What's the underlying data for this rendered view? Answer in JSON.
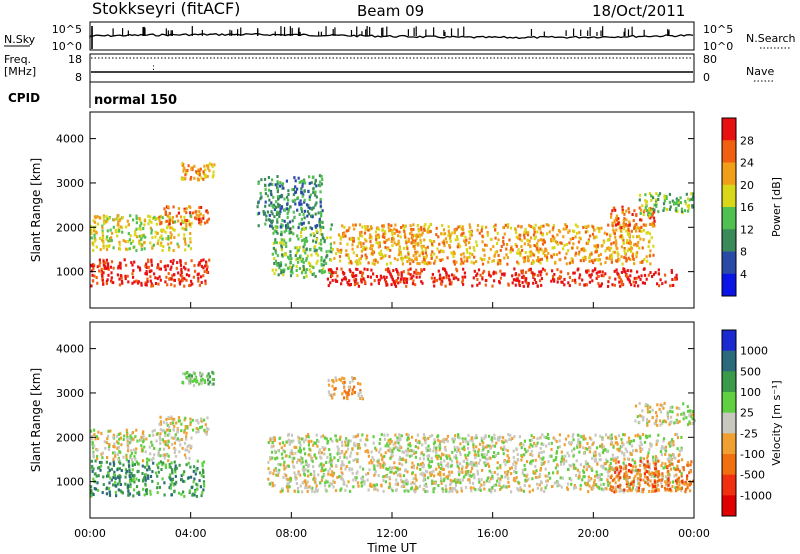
{
  "header": {
    "station": "Stokkseyri (fitACF)",
    "beam": "Beam 09",
    "date": "18/Oct/2011"
  },
  "top_panels": {
    "nsky": {
      "label": "N.Sky",
      "ticks": [
        "10^5",
        "10^0"
      ]
    },
    "nsearch": {
      "label": "N.Search",
      "ticks": [
        "10^5",
        "10^0"
      ]
    },
    "freq": {
      "label_line1": "Freq.",
      "label_line2": "[MHz]",
      "ticks": [
        "18",
        "8"
      ]
    },
    "nave": {
      "label": "Nave",
      "ticks": [
        "80",
        "0"
      ]
    },
    "cpid": {
      "label": "CPID",
      "value": "normal 150"
    }
  },
  "colors": {
    "power_scale": [
      "#0a14e6",
      "#2a4aa8",
      "#3a8a5a",
      "#50c050",
      "#d8d818",
      "#f0a018",
      "#f06010",
      "#e81010"
    ],
    "velocity_scale": [
      "#1a2ad0",
      "#2a6a7a",
      "#3a9a4a",
      "#60d040",
      "#c8c8c0",
      "#f0a030",
      "#f07010",
      "#f03010",
      "#e00000"
    ],
    "grey": "#c8c8c0"
  },
  "chart_data": [
    {
      "type": "heatmap",
      "name": "Power",
      "ylabel": "Slant Range [km]",
      "yticks": [
        1000,
        2000,
        3000,
        4000
      ],
      "ylim": [
        180,
        4600
      ],
      "colorbar": {
        "label": "Power [dB]",
        "ticks": [
          4,
          8,
          12,
          16,
          20,
          24,
          28
        ],
        "range": [
          0,
          32
        ]
      },
      "regions": [
        {
          "t": [
            0.0,
            4.7
          ],
          "r": [
            700,
            1300
          ],
          "level": 7
        },
        {
          "t": [
            0.0,
            4.0
          ],
          "r": [
            1500,
            2300
          ],
          "level": 4
        },
        {
          "t": [
            2.7,
            4.7
          ],
          "r": [
            2100,
            2500
          ],
          "level": 6
        },
        {
          "t": [
            3.6,
            4.9
          ],
          "r": [
            3100,
            3500
          ],
          "level": 5
        },
        {
          "t": [
            7.2,
            9.6
          ],
          "r": [
            900,
            2100
          ],
          "level": 3
        },
        {
          "t": [
            9.4,
            23.3
          ],
          "r": [
            700,
            1100
          ],
          "level": 7
        },
        {
          "t": [
            9.6,
            22.4
          ],
          "r": [
            1200,
            2100
          ],
          "level": 5
        },
        {
          "t": [
            20.6,
            22.4
          ],
          "r": [
            2000,
            2500
          ],
          "level": 6
        },
        {
          "t": [
            21.8,
            24.0
          ],
          "r": [
            2300,
            2800
          ],
          "level": 3
        },
        {
          "t": [
            6.6,
            9.2
          ],
          "r": [
            2000,
            3200
          ],
          "level": 2
        }
      ]
    },
    {
      "type": "heatmap",
      "name": "Velocity",
      "ylabel": "Slant Range [km]",
      "yticks": [
        1000,
        2000,
        3000,
        4000
      ],
      "ylim": [
        180,
        4600
      ],
      "colorbar": {
        "label": "Velocity [m s⁻¹]",
        "ticks": [
          "1000",
          "500",
          "100",
          "25",
          "-25",
          "-100",
          "-500",
          "-1000"
        ]
      },
      "regions": [
        {
          "t": [
            0.0,
            4.5
          ],
          "r": [
            700,
            1500
          ],
          "level": 2
        },
        {
          "t": [
            0.0,
            4.0
          ],
          "r": [
            1500,
            2200
          ],
          "level": 4
        },
        {
          "t": [
            2.7,
            4.7
          ],
          "r": [
            2100,
            2500
          ],
          "level": 4
        },
        {
          "t": [
            7.0,
            23.5
          ],
          "r": [
            800,
            2100
          ],
          "level": 4
        },
        {
          "t": [
            20.6,
            24.0
          ],
          "r": [
            800,
            1500
          ],
          "level": 6
        },
        {
          "t": [
            21.6,
            24.0
          ],
          "r": [
            2300,
            2800
          ],
          "level": 4
        },
        {
          "t": [
            9.4,
            10.8
          ],
          "r": [
            2900,
            3400
          ],
          "level": 5
        },
        {
          "t": [
            3.6,
            4.9
          ],
          "r": [
            3200,
            3500
          ],
          "level": 3
        }
      ]
    }
  ],
  "xaxis": {
    "label": "Time UT",
    "ticks": [
      "00:00",
      "04:00",
      "08:00",
      "12:00",
      "16:00",
      "20:00",
      "00:00"
    ],
    "range": [
      0,
      24
    ]
  }
}
